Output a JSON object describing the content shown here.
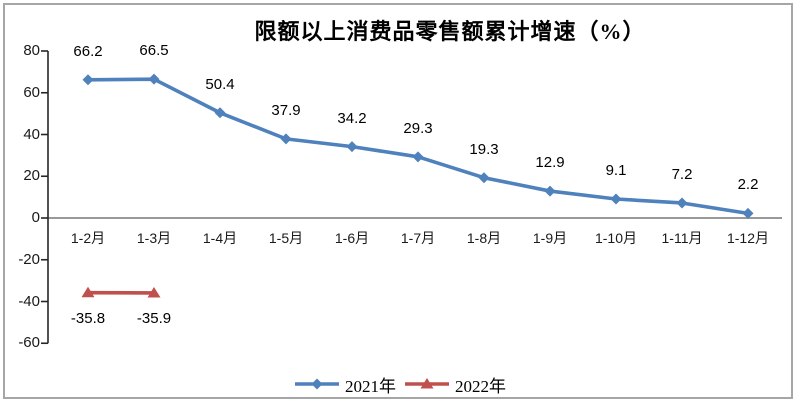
{
  "chart_data": {
    "type": "line",
    "title": "限额以上消费品零售额累计增速（%）",
    "categories": [
      "1-2月",
      "1-3月",
      "1-4月",
      "1-5月",
      "1-6月",
      "1-7月",
      "1-8月",
      "1-9月",
      "1-10月",
      "1-11月",
      "1-12月"
    ],
    "series": [
      {
        "name": "2021年",
        "color": "#4F81BD",
        "marker": "diamond",
        "label_position": "above",
        "values": [
          66.2,
          66.5,
          50.4,
          37.9,
          34.2,
          29.3,
          19.3,
          12.9,
          9.1,
          7.2,
          2.2
        ]
      },
      {
        "name": "2022年",
        "color": "#C0504D",
        "marker": "triangle",
        "label_position": "below",
        "values": [
          -35.8,
          -35.9,
          null,
          null,
          null,
          null,
          null,
          null,
          null,
          null,
          null
        ]
      }
    ],
    "y_axis": {
      "min": -60,
      "max": 80,
      "tick_step": 20,
      "ticks": [
        80,
        60,
        40,
        20,
        0,
        -20,
        -40,
        -60
      ]
    },
    "x_axis_label": "",
    "ylabel": "",
    "grid": false,
    "legend_position": "bottom"
  },
  "styles": {
    "axis_color": "#262626",
    "zero_line_color": "#999999",
    "frame_border_color": "#a6a6a6",
    "label_color": "#000000",
    "background": "#ffffff"
  }
}
